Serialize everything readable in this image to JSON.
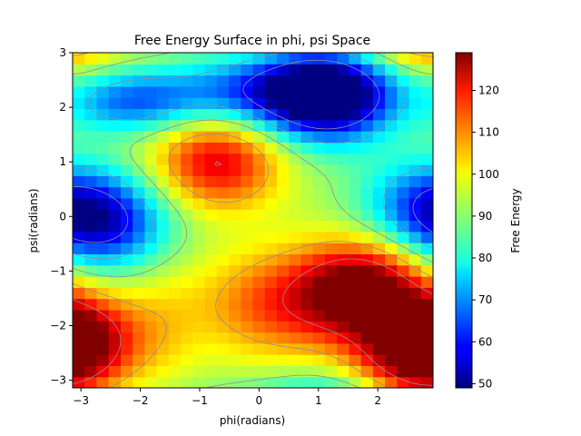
{
  "chart_data": {
    "type": "heatmap",
    "title": "Free Energy Surface in phi, psi Space",
    "xlabel": "phi(radians)",
    "ylabel": "psi(radians)",
    "colorbar_label": "Free Energy",
    "colormap": "jet",
    "xlim": [
      -3.14,
      2.93
    ],
    "ylim": [
      -3.14,
      3.0
    ],
    "value_range": [
      49.0,
      129.0
    ],
    "xticks": [
      -3,
      -2,
      -1,
      0,
      1,
      2
    ],
    "yticks": [
      -3,
      -2,
      -1,
      0,
      1,
      2,
      3
    ],
    "colorbar_ticks": [
      50,
      60,
      70,
      80,
      90,
      100,
      110,
      120
    ],
    "grid_size": [
      30,
      30
    ],
    "contour_lines": true,
    "contour_color": "#909090",
    "features": [
      {
        "kind": "minimum",
        "phi": 1.15,
        "psi": 2.2,
        "value": 49
      },
      {
        "kind": "minimum",
        "phi": -2.6,
        "psi": -0.1,
        "value": 60
      },
      {
        "kind": "minimum",
        "phi": 2.8,
        "psi": 0.2,
        "value": 68
      },
      {
        "kind": "maximum",
        "phi": -0.7,
        "psi": 1.0,
        "value": 121
      },
      {
        "kind": "maximum",
        "phi": 1.8,
        "psi": -1.3,
        "value": 129
      },
      {
        "kind": "maximum",
        "phi": 2.7,
        "psi": -2.5,
        "value": 127
      },
      {
        "kind": "maximum",
        "phi": -3.05,
        "psi": -2.2,
        "value": 120
      }
    ]
  }
}
